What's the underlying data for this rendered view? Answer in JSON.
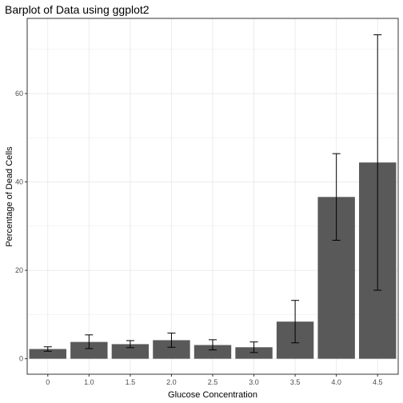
{
  "chart_data": {
    "type": "bar",
    "title": "Barplot of Data using ggplot2",
    "xlabel": "Glucose Concentration",
    "ylabel": "Percentage of Dead Cells",
    "categories": [
      "0",
      "1.0",
      "1.5",
      "2.0",
      "2.5",
      "3.0",
      "3.5",
      "4.0",
      "4.5"
    ],
    "values": [
      2.2,
      3.8,
      3.3,
      4.2,
      3.1,
      2.6,
      8.4,
      36.6,
      44.4
    ],
    "error_low": [
      1.7,
      2.3,
      2.5,
      2.6,
      2.0,
      1.4,
      3.6,
      26.8,
      15.5
    ],
    "error_high": [
      2.7,
      5.4,
      4.1,
      5.8,
      4.3,
      3.8,
      13.2,
      46.4,
      73.3
    ],
    "yticks": [
      0,
      20,
      40,
      60
    ],
    "ylim": [
      -3.5,
      77.0
    ],
    "grid": true,
    "legend": "none",
    "colors": {
      "bar": "#595959",
      "panel_border": "#333333",
      "grid": "#ebebeb",
      "tick_text": "#4d4d4d",
      "error_bar": "#000000"
    }
  }
}
